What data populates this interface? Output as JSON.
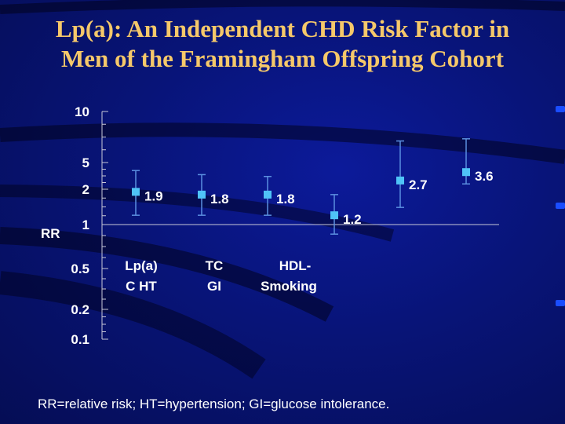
{
  "slide": {
    "title_line1": "Lp(a): An Independent CHD Risk Factor in",
    "title_line2": "Men of the Framingham Offspring Cohort",
    "footnote": "RR=relative risk; HT=hypertension; GI=glucose intolerance."
  },
  "colors": {
    "title": "#f5c86a",
    "marker": "#4fc3f7",
    "errorbar": "#5b8fe0",
    "axis": "#c8c8d8",
    "background": "#081478"
  },
  "chart_data": {
    "type": "scatter",
    "ylabel": "RR",
    "yscale": "log",
    "ylim": [
      0.1,
      10
    ],
    "yticks": [
      10,
      5,
      2,
      1,
      0.5,
      0.2,
      0.1
    ],
    "ytick_labels": [
      "10",
      "5",
      "2",
      "1",
      "0.5",
      "0.2",
      "0.1"
    ],
    "reference_line": 1,
    "category_labels": [
      [
        "Lp(a)",
        "C HT"
      ],
      [
        "TC",
        "GI"
      ],
      [
        "HDL-",
        "Smoking"
      ]
    ],
    "points": [
      {
        "value": 1.9,
        "label": "1.9",
        "ci": [
          1.2,
          3.8
        ]
      },
      {
        "value": 1.8,
        "label": "1.8",
        "ci": [
          1.2,
          3.3
        ]
      },
      {
        "value": 1.8,
        "label": "1.8",
        "ci": [
          1.2,
          3.1
        ]
      },
      {
        "value": 1.2,
        "label": "1.2",
        "ci": [
          0.86,
          1.8
        ]
      },
      {
        "value": 2.7,
        "label": "2.7",
        "ci": [
          1.4,
          6.7
        ]
      },
      {
        "value": 3.6,
        "label": "3.6",
        "ci": [
          2.4,
          6.9
        ]
      }
    ]
  }
}
